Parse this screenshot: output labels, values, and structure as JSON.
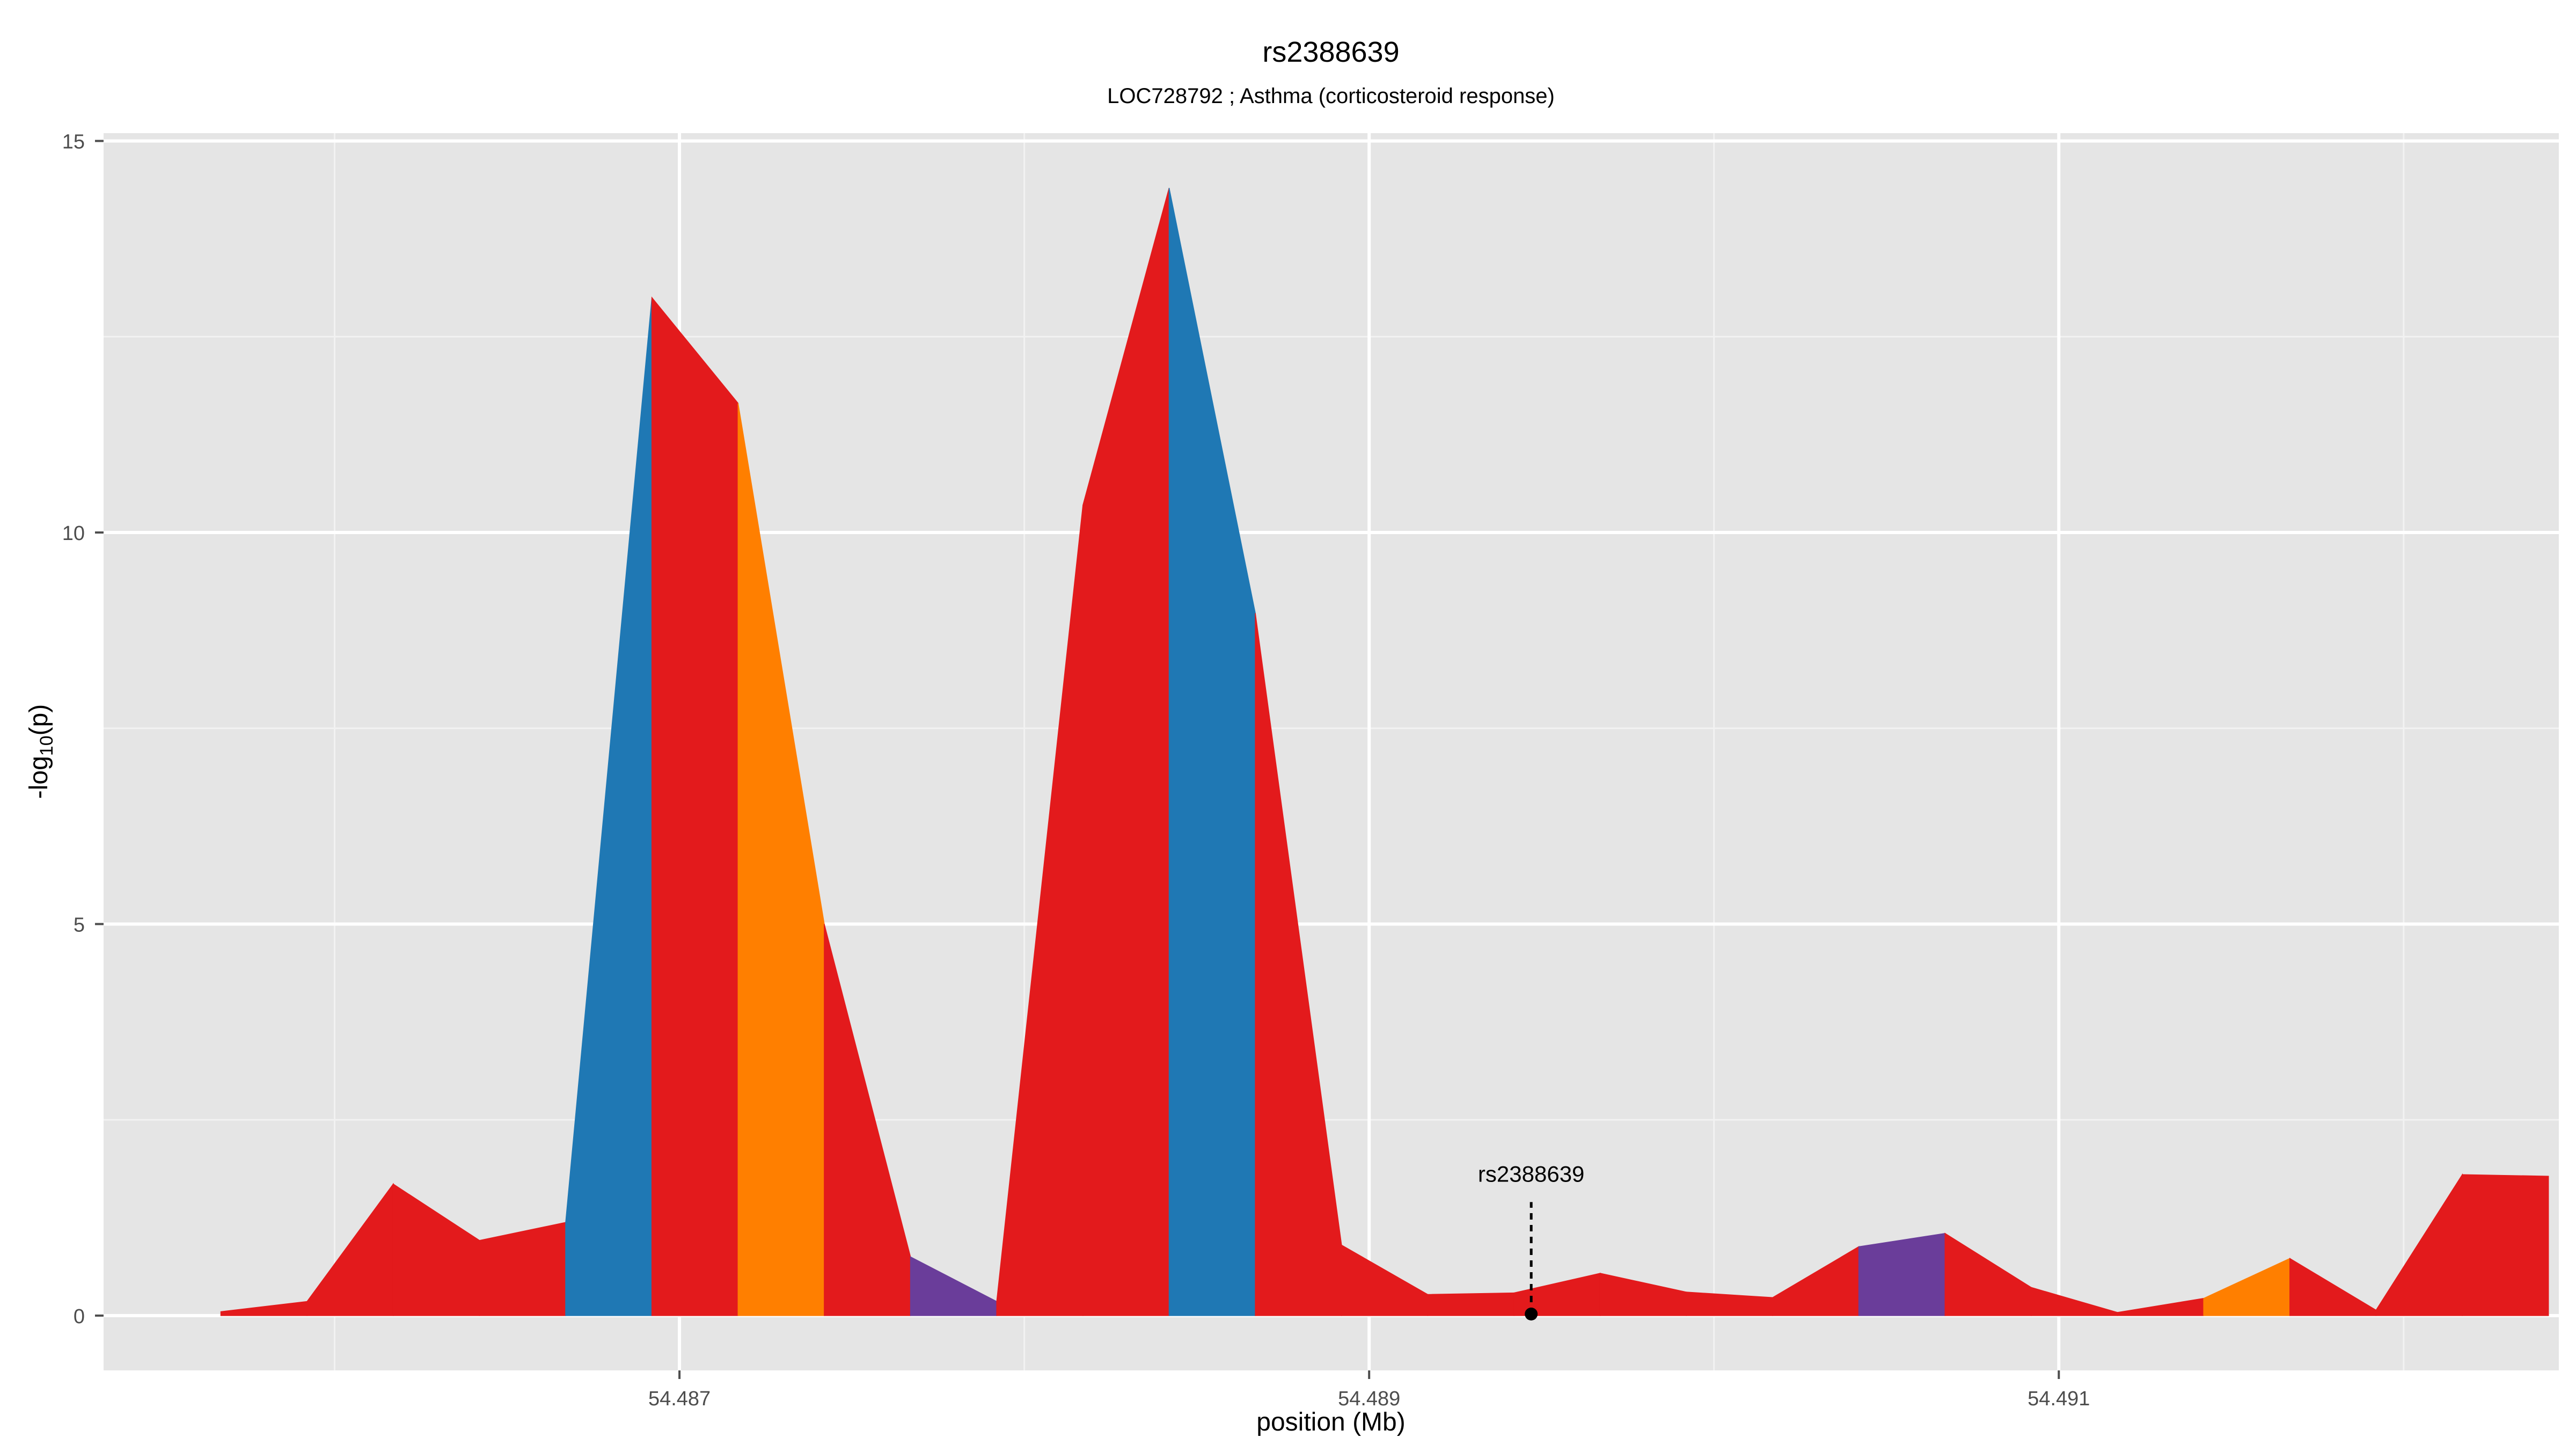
{
  "chart_data": {
    "type": "area",
    "title": "rs2388639",
    "subtitle": "LOC728792 ; Asthma (corticosteroid response)",
    "xlabel": "position (Mb)",
    "ylabel": "-log10(p)",
    "xlim": [
      54.48533,
      54.49245
    ],
    "ylim": [
      -0.7,
      15.1
    ],
    "x_ticks": [
      54.487,
      54.489,
      54.491
    ],
    "x_tick_labels": [
      "54.487",
      "54.489",
      "54.491"
    ],
    "y_ticks": [
      0,
      5,
      10,
      15
    ],
    "y_tick_labels": [
      "0",
      "5",
      "10",
      "15"
    ],
    "grid": true,
    "colors": {
      "panel": "#e5e5e5",
      "grid_major": "#ffffff",
      "grid_minor": "#f2f2f2",
      "red": "#e31a1c",
      "blue": "#1f78b4",
      "orange": "#ff7f00",
      "purple": "#6a3d9a",
      "axis_text": "#4d4d4d",
      "annotation": "#000000"
    },
    "x": [
      54.48567,
      54.48592,
      54.48617,
      54.48642,
      54.48667,
      54.48692,
      54.48717,
      54.48742,
      54.48767,
      54.48792,
      54.48817,
      54.48842,
      54.48867,
      54.48892,
      54.48917,
      54.48942,
      54.48967,
      54.48992,
      54.49017,
      54.49042,
      54.49067,
      54.49092,
      54.49117,
      54.49142,
      54.49167,
      54.49192,
      54.49217
    ],
    "y": [
      0.05,
      0.18,
      1.68,
      0.96,
      1.19,
      13.0,
      11.65,
      5.0,
      0.75,
      0.18,
      10.35,
      14.4,
      8.97,
      0.9,
      0.27,
      0.29,
      0.54,
      0.3,
      0.23,
      0.88,
      1.05,
      0.36,
      0.04,
      0.22,
      0.73,
      0.07,
      1.8
    ],
    "y_end": 1.78,
    "segment_colors": [
      "red",
      "red",
      "red",
      "red",
      "blue",
      "red",
      "orange",
      "red",
      "purple",
      "red",
      "red",
      "blue",
      "red",
      "red",
      "red",
      "red",
      "red",
      "red",
      "red",
      "purple",
      "red",
      "red",
      "red",
      "orange",
      "red",
      "red",
      "red"
    ],
    "annotation": {
      "label": "rs2388639",
      "x": 54.48947,
      "y": 0.02,
      "line_top": 1.45
    }
  }
}
